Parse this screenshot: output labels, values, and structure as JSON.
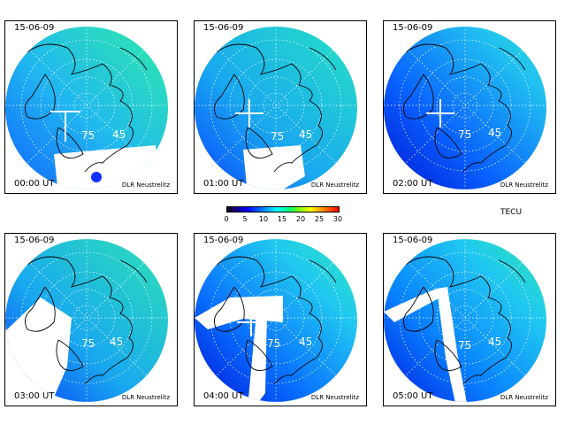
{
  "panels": [
    {
      "date": "15-06-09",
      "time": "00:00 UT",
      "source": "DLR Neustrelitz"
    },
    {
      "date": "15-06-09",
      "time": "01:00 UT",
      "source": "DLR Neustrelitz"
    },
    {
      "date": "15-06-09",
      "time": "02:00 UT",
      "source": "DLR Neustrelitz"
    },
    {
      "date": "15-06-09",
      "time": "03:00 UT",
      "source": "DLR Neustrelitz"
    },
    {
      "date": "15-06-09",
      "time": "04:00 UT",
      "source": "DLR Neustrelitz"
    },
    {
      "date": "15-06-09",
      "time": "05:00 UT",
      "source": "DLR Neustrelitz"
    }
  ],
  "latitude_labels": [
    "75",
    "45"
  ],
  "colorbar": {
    "ticks": [
      "0",
      "5",
      "10",
      "15",
      "20",
      "25",
      "30"
    ],
    "unit": "TECU",
    "min": 0,
    "max": 30,
    "colors": [
      "#000000",
      "#0000ff",
      "#0080ff",
      "#00ffff",
      "#00ff80",
      "#ffff00",
      "#ff0000"
    ]
  }
}
